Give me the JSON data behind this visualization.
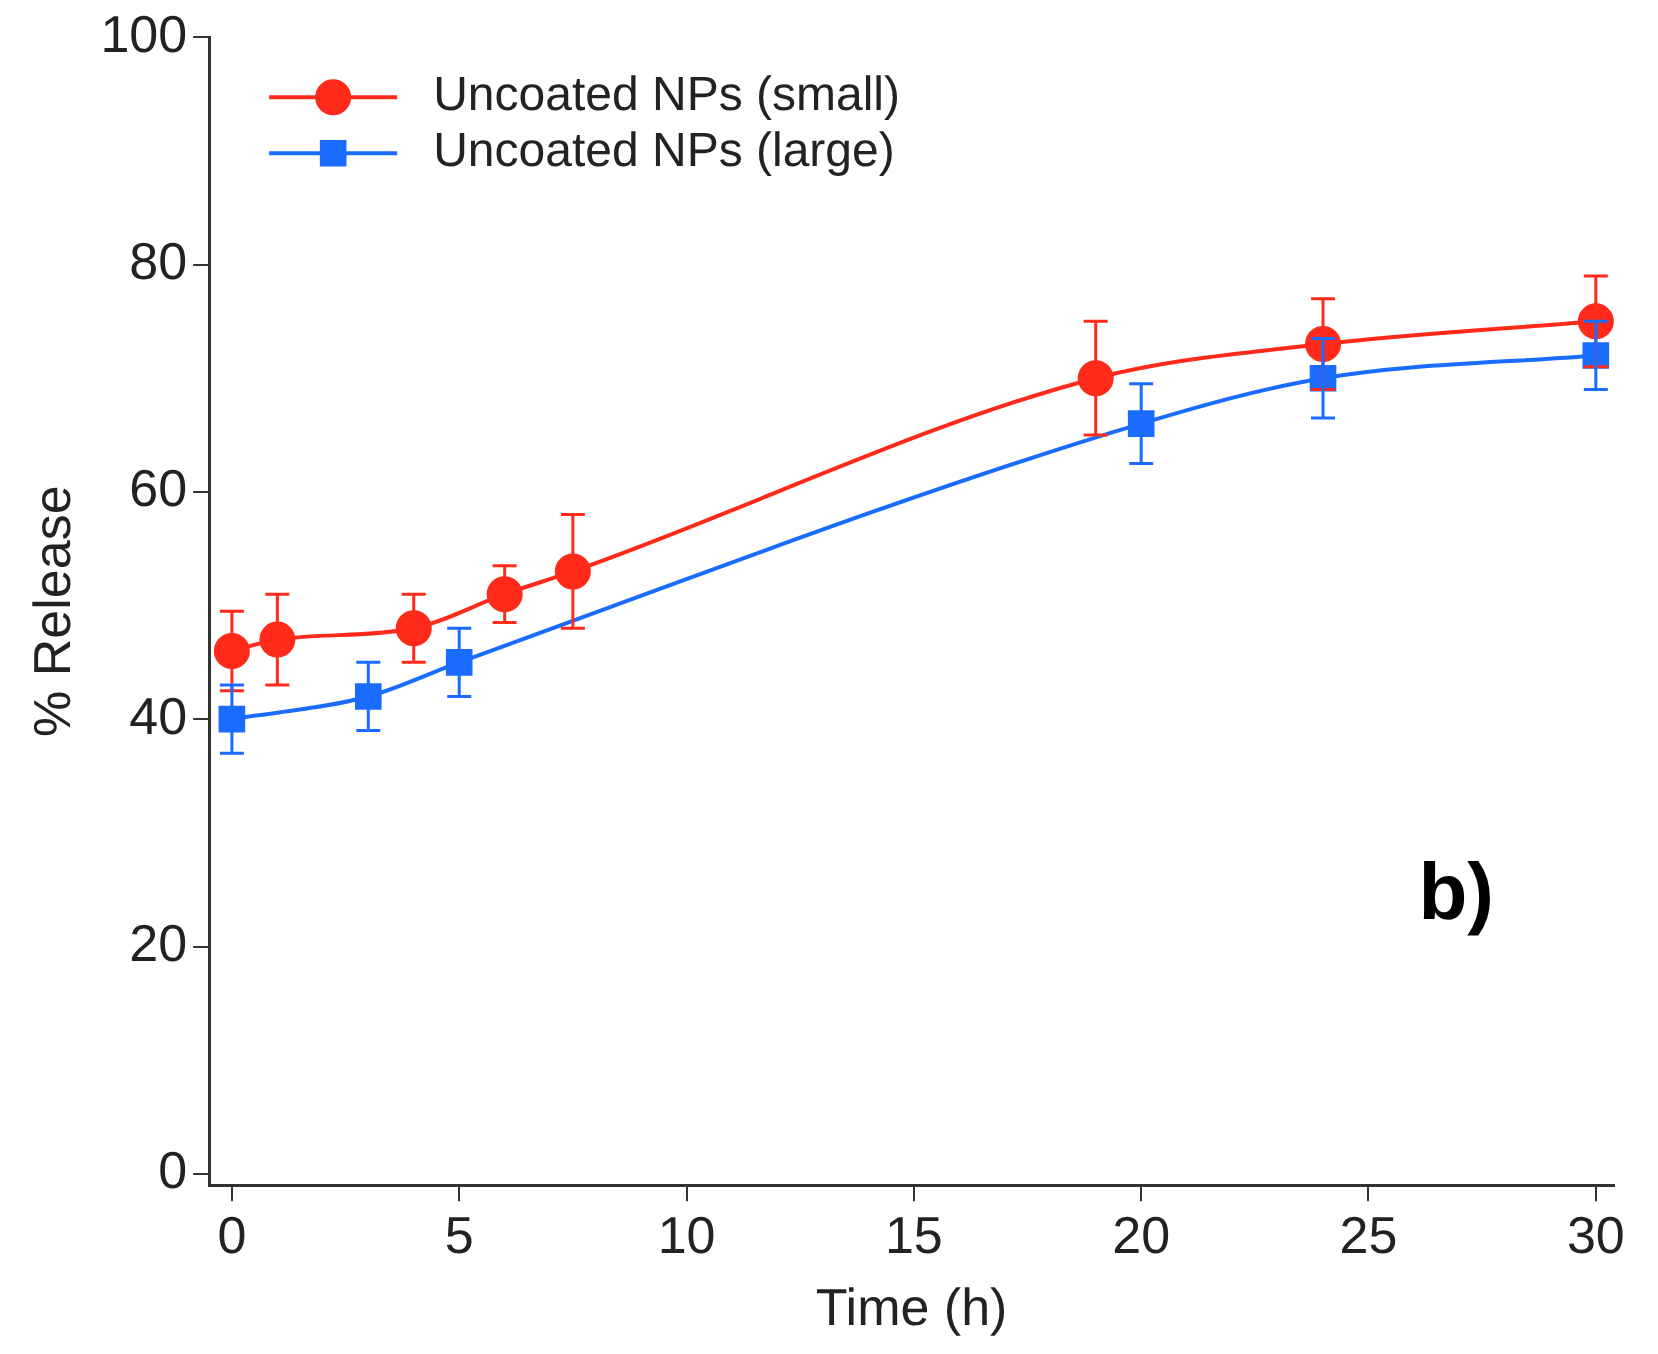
{
  "chart_data": {
    "type": "line",
    "xlabel": "Time (h)",
    "ylabel": "% Release",
    "xlim": [
      -0.5,
      30.4
    ],
    "ylim": [
      -1,
      100
    ],
    "xticks": [
      0,
      5,
      10,
      15,
      20,
      25,
      30
    ],
    "yticks": [
      0,
      20,
      40,
      60,
      80,
      100
    ],
    "grid": false,
    "legend": "top left",
    "annotations": [
      "b)"
    ],
    "series": [
      {
        "name": "Uncoated NPs (small)",
        "color": "#ff2a1a",
        "marker": "circle",
        "x": [
          0,
          1,
          4,
          6,
          7.5,
          19,
          24,
          30
        ],
        "values": [
          46,
          47,
          48,
          51,
          53,
          70,
          73,
          75
        ],
        "errors": [
          3.5,
          4,
          3,
          2.5,
          5,
          5,
          4,
          4
        ]
      },
      {
        "name": "Uncoated NPs (large)",
        "color": "#1a6cff",
        "marker": "square",
        "x": [
          0,
          3,
          5,
          20,
          24,
          30
        ],
        "values": [
          40,
          42,
          45,
          66,
          70,
          72
        ],
        "errors": [
          3,
          3,
          3,
          3.5,
          3.5,
          3
        ]
      }
    ]
  }
}
